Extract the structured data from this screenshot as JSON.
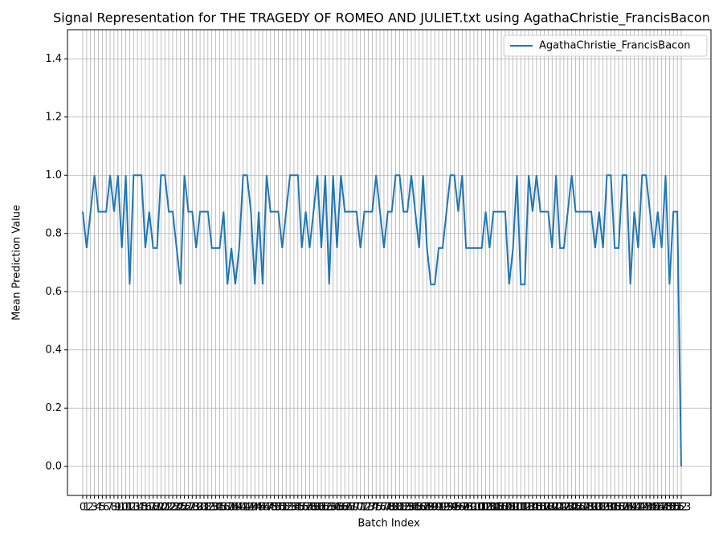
{
  "chart_data": {
    "type": "line",
    "title": "Signal Representation for THE TRAGEDY OF ROMEO AND JULIET.txt using AgathaChristie_FrancisBacon",
    "x_label": "Batch Index",
    "y_label": "Mean Prediction Value",
    "x": [
      0,
      1,
      2,
      3,
      4,
      5,
      6,
      7,
      8,
      9,
      10,
      11,
      12,
      13,
      14,
      15,
      16,
      17,
      18,
      19,
      20,
      21,
      22,
      23,
      24,
      25,
      26,
      27,
      28,
      29,
      30,
      31,
      32,
      33,
      34,
      35,
      36,
      37,
      38,
      39,
      40,
      41,
      42,
      43,
      44,
      45,
      46,
      47,
      48,
      49,
      50,
      51,
      52,
      53,
      54,
      55,
      56,
      57,
      58,
      59,
      60,
      61,
      62,
      63,
      64,
      65,
      66,
      67,
      68,
      69,
      70,
      71,
      72,
      73,
      74,
      75,
      76,
      77,
      78,
      79,
      80,
      81,
      82,
      83,
      84,
      85,
      86,
      87,
      88,
      89,
      90,
      91,
      92,
      93,
      94,
      95,
      96,
      97,
      98,
      99,
      100,
      101,
      102,
      103,
      104,
      105,
      106,
      107,
      108,
      109,
      110,
      111,
      112,
      113,
      114,
      115,
      116,
      117,
      118,
      119,
      120,
      121,
      122,
      123,
      124,
      125,
      126,
      127,
      128,
      129,
      130,
      131,
      132,
      133,
      134,
      135,
      136,
      137,
      138,
      139,
      140,
      141,
      142,
      143,
      144,
      145,
      146,
      147,
      148,
      149,
      150,
      151,
      152,
      153
    ],
    "series": [
      {
        "name": "AgathaChristie_FrancisBacon",
        "color": "#1f77b4",
        "values": [
          0.875,
          0.75,
          0.875,
          1,
          0.875,
          0.875,
          0.875,
          1,
          0.875,
          1,
          0.75,
          1,
          0.625,
          1,
          1,
          1,
          0.75,
          0.875,
          0.75,
          0.75,
          1,
          1,
          0.875,
          0.875,
          0.75,
          0.625,
          1,
          0.875,
          0.875,
          0.75,
          0.875,
          0.875,
          0.875,
          0.75,
          0.75,
          0.75,
          0.875,
          0.625,
          0.75,
          0.625,
          0.75,
          1,
          1,
          0.875,
          0.625,
          0.875,
          0.625,
          1,
          0.875,
          0.875,
          0.875,
          0.75,
          0.875,
          1,
          1,
          1,
          0.75,
          0.875,
          0.75,
          0.875,
          1,
          0.75,
          1,
          0.625,
          1,
          0.75,
          1,
          0.875,
          0.875,
          0.875,
          0.875,
          0.75,
          0.875,
          0.875,
          0.875,
          1,
          0.875,
          0.75,
          0.875,
          0.875,
          1,
          1,
          0.875,
          0.875,
          1,
          0.875,
          0.75,
          1,
          0.75,
          0.625,
          0.625,
          0.75,
          0.75,
          0.875,
          1,
          1,
          0.875,
          1,
          0.75,
          0.75,
          0.75,
          0.75,
          0.75,
          0.875,
          0.75,
          0.875,
          0.875,
          0.875,
          0.875,
          0.625,
          0.75,
          1,
          0.625,
          0.625,
          1,
          0.875,
          1,
          0.875,
          0.875,
          0.875,
          0.75,
          1,
          0.75,
          0.75,
          0.875,
          1,
          0.875,
          0.875,
          0.875,
          0.875,
          0.875,
          0.75,
          0.875,
          0.75,
          1,
          1,
          0.75,
          0.75,
          1,
          1,
          0.625,
          0.875,
          0.75,
          1,
          1,
          0.875,
          0.75,
          0.875,
          0.75,
          1,
          0.625,
          0.875,
          0.875,
          0
        ]
      }
    ],
    "xlim": [
      -3.9,
      160.6
    ],
    "ylim": [
      -0.1,
      1.5
    ],
    "yticks": [
      {
        "value": 0,
        "label": "0.0"
      },
      {
        "value": 0.2,
        "label": "0.2"
      },
      {
        "value": 0.4,
        "label": "0.4"
      },
      {
        "value": 0.6,
        "label": "0.6"
      },
      {
        "value": 0.8,
        "label": "0.8"
      },
      {
        "value": 1,
        "label": "1.0"
      },
      {
        "value": 1.2,
        "label": "1.2"
      },
      {
        "value": 1.4,
        "label": "1.4"
      }
    ],
    "grid": true,
    "legend": "upper right"
  }
}
